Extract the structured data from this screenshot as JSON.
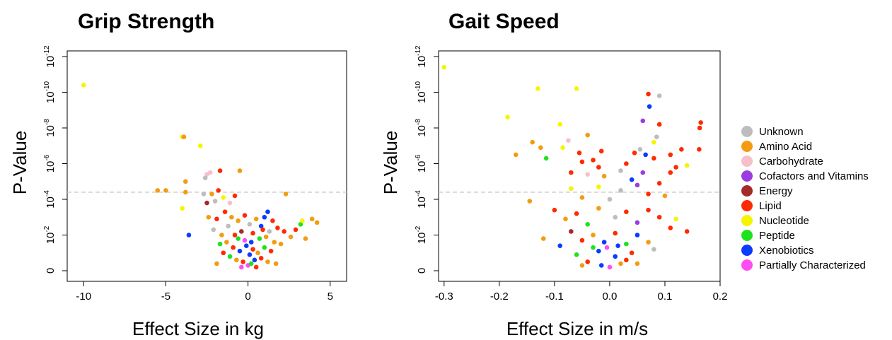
{
  "chart_data": [
    {
      "type": "scatter",
      "title": "Grip Strength",
      "xlabel": "Effect Size in kg",
      "ylabel": "P-Value",
      "xlim": [
        -11,
        6
      ],
      "ylim_neg_log10_p": [
        0,
        12
      ],
      "y_scale": "-log10(p)",
      "xticks": [
        -10,
        -5,
        0,
        5
      ],
      "xtick_labels": [
        "-10",
        "-5",
        "0",
        "5"
      ],
      "yticks_neg_log10_p": [
        0,
        2,
        4,
        6,
        8,
        10,
        12
      ],
      "ytick_labels": [
        {
          "base": "0",
          "exp": ""
        },
        {
          "base": "10",
          "exp": "-2"
        },
        {
          "base": "10",
          "exp": "-4"
        },
        {
          "base": "10",
          "exp": "-6"
        },
        {
          "base": "10",
          "exp": "-8"
        },
        {
          "base": "10",
          "exp": "-10"
        },
        {
          "base": "10",
          "exp": "-12"
        }
      ],
      "threshold_neg_log10_p": 4.4,
      "grid": false,
      "points": [
        {
          "x": -10.0,
          "y": 10.4,
          "group": "Nucleotide"
        },
        {
          "x": -4.0,
          "y": 7.5,
          "group": "Nucleotide"
        },
        {
          "x": -3.9,
          "y": 7.5,
          "group": "Amino Acid"
        },
        {
          "x": -2.9,
          "y": 7.0,
          "group": "Nucleotide"
        },
        {
          "x": -5.5,
          "y": 4.5,
          "group": "Amino Acid"
        },
        {
          "x": -5.0,
          "y": 4.5,
          "group": "Amino Acid"
        },
        {
          "x": -3.8,
          "y": 4.4,
          "group": "Amino Acid"
        },
        {
          "x": -3.8,
          "y": 5.0,
          "group": "Amino Acid"
        },
        {
          "x": -4.0,
          "y": 3.5,
          "group": "Nucleotide"
        },
        {
          "x": -3.6,
          "y": 2.0,
          "group": "Xenobiotics"
        },
        {
          "x": -2.5,
          "y": 5.4,
          "group": "Carbohydrate"
        },
        {
          "x": -2.3,
          "y": 5.5,
          "group": "Carbohydrate"
        },
        {
          "x": -2.6,
          "y": 5.2,
          "group": "Unknown"
        },
        {
          "x": -1.7,
          "y": 5.6,
          "group": "Lipid"
        },
        {
          "x": -0.5,
          "y": 5.6,
          "group": "Amino Acid"
        },
        {
          "x": -2.7,
          "y": 4.3,
          "group": "Unknown"
        },
        {
          "x": -2.5,
          "y": 3.8,
          "group": "Energy"
        },
        {
          "x": -2.2,
          "y": 4.3,
          "group": "Amino Acid"
        },
        {
          "x": -2.0,
          "y": 3.9,
          "group": "Unknown"
        },
        {
          "x": -1.8,
          "y": 4.5,
          "group": "Lipid"
        },
        {
          "x": -1.5,
          "y": 4.1,
          "group": "Nucleotide"
        },
        {
          "x": -1.1,
          "y": 3.8,
          "group": "Carbohydrate"
        },
        {
          "x": -0.8,
          "y": 4.2,
          "group": "Lipid"
        },
        {
          "x": 2.3,
          "y": 4.3,
          "group": "Amino Acid"
        },
        {
          "x": 1.2,
          "y": 3.3,
          "group": "Xenobiotics"
        },
        {
          "x": 1.0,
          "y": 3.0,
          "group": "Xenobiotics"
        },
        {
          "x": 0.8,
          "y": 2.5,
          "group": "Xenobiotics"
        },
        {
          "x": 1.5,
          "y": 2.8,
          "group": "Lipid"
        },
        {
          "x": 3.2,
          "y": 2.6,
          "group": "Peptide"
        },
        {
          "x": 3.3,
          "y": 2.8,
          "group": "Nucleotide"
        },
        {
          "x": 3.9,
          "y": 2.9,
          "group": "Amino Acid"
        },
        {
          "x": 4.2,
          "y": 2.7,
          "group": "Amino Acid"
        },
        {
          "x": 3.5,
          "y": 1.8,
          "group": "Amino Acid"
        },
        {
          "x": 2.2,
          "y": 2.2,
          "group": "Lipid"
        },
        {
          "x": 2.6,
          "y": 1.9,
          "group": "Amino Acid"
        },
        {
          "x": 2.9,
          "y": 2.3,
          "group": "Lipid"
        },
        {
          "x": -2.4,
          "y": 3.0,
          "group": "Amino Acid"
        },
        {
          "x": -2.1,
          "y": 2.3,
          "group": "Unknown"
        },
        {
          "x": -1.9,
          "y": 2.9,
          "group": "Lipid"
        },
        {
          "x": -1.6,
          "y": 2.0,
          "group": "Amino Acid"
        },
        {
          "x": -1.4,
          "y": 3.3,
          "group": "Lipid"
        },
        {
          "x": -1.2,
          "y": 2.5,
          "group": "Unknown"
        },
        {
          "x": -1.0,
          "y": 3.0,
          "group": "Amino Acid"
        },
        {
          "x": -0.8,
          "y": 2.0,
          "group": "Lipid"
        },
        {
          "x": -0.6,
          "y": 2.8,
          "group": "Amino Acid"
        },
        {
          "x": -0.4,
          "y": 2.2,
          "group": "Energy"
        },
        {
          "x": -0.2,
          "y": 3.1,
          "group": "Lipid"
        },
        {
          "x": 0.1,
          "y": 2.6,
          "group": "Unknown"
        },
        {
          "x": 0.3,
          "y": 2.1,
          "group": "Lipid"
        },
        {
          "x": 0.5,
          "y": 2.9,
          "group": "Amino Acid"
        },
        {
          "x": 0.7,
          "y": 1.8,
          "group": "Peptide"
        },
        {
          "x": 0.9,
          "y": 2.3,
          "group": "Lipid"
        },
        {
          "x": 1.1,
          "y": 1.9,
          "group": "Amino Acid"
        },
        {
          "x": 1.3,
          "y": 2.2,
          "group": "Unknown"
        },
        {
          "x": 1.6,
          "y": 1.6,
          "group": "Amino Acid"
        },
        {
          "x": 1.8,
          "y": 2.4,
          "group": "Lipid"
        },
        {
          "x": 2.0,
          "y": 1.5,
          "group": "Amino Acid"
        },
        {
          "x": -1.7,
          "y": 1.5,
          "group": "Peptide"
        },
        {
          "x": -1.5,
          "y": 1.0,
          "group": "Lipid"
        },
        {
          "x": -1.3,
          "y": 1.6,
          "group": "Amino Acid"
        },
        {
          "x": -1.1,
          "y": 0.8,
          "group": "Peptide"
        },
        {
          "x": -0.9,
          "y": 1.3,
          "group": "Lipid"
        },
        {
          "x": -0.7,
          "y": 0.6,
          "group": "Amino Acid"
        },
        {
          "x": -0.5,
          "y": 1.1,
          "group": "Xenobiotics"
        },
        {
          "x": -0.3,
          "y": 0.5,
          "group": "Lipid"
        },
        {
          "x": -0.1,
          "y": 1.4,
          "group": "Xenobiotics"
        },
        {
          "x": 0.0,
          "y": 0.3,
          "group": "Partially Characterized"
        },
        {
          "x": 0.1,
          "y": 0.9,
          "group": "Xenobiotics"
        },
        {
          "x": 0.2,
          "y": 0.4,
          "group": "Peptide"
        },
        {
          "x": 0.3,
          "y": 1.2,
          "group": "Lipid"
        },
        {
          "x": 0.4,
          "y": 0.6,
          "group": "Xenobiotics"
        },
        {
          "x": 0.6,
          "y": 1.0,
          "group": "Amino Acid"
        },
        {
          "x": 0.8,
          "y": 0.7,
          "group": "Lipid"
        },
        {
          "x": 1.0,
          "y": 1.3,
          "group": "Peptide"
        },
        {
          "x": 1.2,
          "y": 0.5,
          "group": "Amino Acid"
        },
        {
          "x": 1.4,
          "y": 1.1,
          "group": "Lipid"
        },
        {
          "x": -0.2,
          "y": 1.7,
          "group": "Partially Characterized"
        },
        {
          "x": -0.4,
          "y": 0.2,
          "group": "Partially Characterized"
        },
        {
          "x": 0.2,
          "y": 1.6,
          "group": "Xenobiotics"
        },
        {
          "x": -0.6,
          "y": 1.8,
          "group": "Peptide"
        },
        {
          "x": 0.5,
          "y": 0.2,
          "group": "Lipid"
        },
        {
          "x": -1.9,
          "y": 0.4,
          "group": "Amino Acid"
        },
        {
          "x": 1.7,
          "y": 0.4,
          "group": "Amino Acid"
        }
      ]
    },
    {
      "type": "scatter",
      "title": "Gait Speed",
      "xlabel": "Effect Size in m/s",
      "ylabel": "P-Value",
      "xlim": [
        -0.31,
        0.2
      ],
      "ylim_neg_log10_p": [
        0,
        12
      ],
      "y_scale": "-log10(p)",
      "xticks": [
        -0.3,
        -0.2,
        -0.1,
        0.0,
        0.1,
        0.2
      ],
      "xtick_labels": [
        "-0.3",
        "-0.2",
        "-0.1",
        "0.0",
        "0.1",
        "0.2"
      ],
      "yticks_neg_log10_p": [
        0,
        2,
        4,
        6,
        8,
        10,
        12
      ],
      "ytick_labels": [
        {
          "base": "0",
          "exp": ""
        },
        {
          "base": "10",
          "exp": "-2"
        },
        {
          "base": "10",
          "exp": "-4"
        },
        {
          "base": "10",
          "exp": "-6"
        },
        {
          "base": "10",
          "exp": "-8"
        },
        {
          "base": "10",
          "exp": "-10"
        },
        {
          "base": "10",
          "exp": "-12"
        }
      ],
      "threshold_neg_log10_p": 4.4,
      "grid": false,
      "points": [
        {
          "x": -0.3,
          "y": 11.4,
          "group": "Nucleotide"
        },
        {
          "x": -0.13,
          "y": 10.2,
          "group": "Nucleotide"
        },
        {
          "x": -0.06,
          "y": 10.2,
          "group": "Nucleotide"
        },
        {
          "x": -0.185,
          "y": 8.6,
          "group": "Nucleotide"
        },
        {
          "x": -0.09,
          "y": 8.2,
          "group": "Nucleotide"
        },
        {
          "x": -0.14,
          "y": 7.2,
          "group": "Amino Acid"
        },
        {
          "x": -0.125,
          "y": 6.9,
          "group": "Amino Acid"
        },
        {
          "x": -0.04,
          "y": 7.6,
          "group": "Amino Acid"
        },
        {
          "x": -0.075,
          "y": 7.3,
          "group": "Carbohydrate"
        },
        {
          "x": -0.17,
          "y": 6.5,
          "group": "Amino Acid"
        },
        {
          "x": -0.115,
          "y": 6.3,
          "group": "Peptide"
        },
        {
          "x": -0.085,
          "y": 6.9,
          "group": "Nucleotide"
        },
        {
          "x": -0.055,
          "y": 6.6,
          "group": "Lipid"
        },
        {
          "x": -0.05,
          "y": 6.1,
          "group": "Lipid"
        },
        {
          "x": -0.03,
          "y": 6.2,
          "group": "Lipid"
        },
        {
          "x": -0.015,
          "y": 6.7,
          "group": "Lipid"
        },
        {
          "x": -0.07,
          "y": 5.5,
          "group": "Lipid"
        },
        {
          "x": -0.04,
          "y": 5.4,
          "group": "Carbohydrate"
        },
        {
          "x": -0.02,
          "y": 5.8,
          "group": "Lipid"
        },
        {
          "x": -0.01,
          "y": 5.3,
          "group": "Amino Acid"
        },
        {
          "x": 0.02,
          "y": 5.6,
          "group": "Unknown"
        },
        {
          "x": 0.03,
          "y": 6.0,
          "group": "Lipid"
        },
        {
          "x": 0.04,
          "y": 5.1,
          "group": "Xenobiotics"
        },
        {
          "x": 0.045,
          "y": 6.6,
          "group": "Lipid"
        },
        {
          "x": 0.055,
          "y": 6.8,
          "group": "Unknown"
        },
        {
          "x": 0.06,
          "y": 5.5,
          "group": "Cofactors and Vitamins"
        },
        {
          "x": 0.065,
          "y": 6.5,
          "group": "Xenobiotics"
        },
        {
          "x": 0.07,
          "y": 9.9,
          "group": "Lipid"
        },
        {
          "x": 0.072,
          "y": 9.2,
          "group": "Xenobiotics"
        },
        {
          "x": 0.09,
          "y": 9.8,
          "group": "Unknown"
        },
        {
          "x": 0.06,
          "y": 8.4,
          "group": "Cofactors and Vitamins"
        },
        {
          "x": 0.09,
          "y": 8.2,
          "group": "Lipid"
        },
        {
          "x": 0.085,
          "y": 7.5,
          "group": "Unknown"
        },
        {
          "x": 0.08,
          "y": 7.2,
          "group": "Nucleotide"
        },
        {
          "x": 0.08,
          "y": 6.3,
          "group": "Lipid"
        },
        {
          "x": 0.11,
          "y": 6.5,
          "group": "Lipid"
        },
        {
          "x": 0.13,
          "y": 6.8,
          "group": "Lipid"
        },
        {
          "x": 0.165,
          "y": 8.3,
          "group": "Lipid"
        },
        {
          "x": 0.163,
          "y": 8.0,
          "group": "Lipid"
        },
        {
          "x": 0.162,
          "y": 6.8,
          "group": "Lipid"
        },
        {
          "x": 0.14,
          "y": 5.9,
          "group": "Nucleotide"
        },
        {
          "x": 0.11,
          "y": 5.5,
          "group": "Lipid"
        },
        {
          "x": 0.12,
          "y": 5.8,
          "group": "Lipid"
        },
        {
          "x": 0.09,
          "y": 4.9,
          "group": "Lipid"
        },
        {
          "x": 0.1,
          "y": 4.2,
          "group": "Amino Acid"
        },
        {
          "x": -0.145,
          "y": 3.9,
          "group": "Amino Acid"
        },
        {
          "x": -0.07,
          "y": 4.6,
          "group": "Nucleotide"
        },
        {
          "x": -0.05,
          "y": 4.1,
          "group": "Amino Acid"
        },
        {
          "x": -0.02,
          "y": 4.7,
          "group": "Nucleotide"
        },
        {
          "x": 0.0,
          "y": 4.0,
          "group": "Unknown"
        },
        {
          "x": 0.02,
          "y": 4.5,
          "group": "Unknown"
        },
        {
          "x": 0.05,
          "y": 4.8,
          "group": "Cofactors and Vitamins"
        },
        {
          "x": 0.07,
          "y": 4.3,
          "group": "Lipid"
        },
        {
          "x": -0.1,
          "y": 3.4,
          "group": "Lipid"
        },
        {
          "x": -0.08,
          "y": 2.9,
          "group": "Amino Acid"
        },
        {
          "x": -0.06,
          "y": 3.2,
          "group": "Lipid"
        },
        {
          "x": -0.04,
          "y": 2.6,
          "group": "Peptide"
        },
        {
          "x": -0.02,
          "y": 3.5,
          "group": "Amino Acid"
        },
        {
          "x": 0.01,
          "y": 3.0,
          "group": "Unknown"
        },
        {
          "x": 0.03,
          "y": 3.3,
          "group": "Lipid"
        },
        {
          "x": 0.05,
          "y": 2.7,
          "group": "Cofactors and Vitamins"
        },
        {
          "x": 0.07,
          "y": 3.4,
          "group": "Lipid"
        },
        {
          "x": 0.09,
          "y": 3.0,
          "group": "Lipid"
        },
        {
          "x": 0.11,
          "y": 2.4,
          "group": "Lipid"
        },
        {
          "x": 0.12,
          "y": 2.9,
          "group": "Nucleotide"
        },
        {
          "x": 0.14,
          "y": 2.2,
          "group": "Lipid"
        },
        {
          "x": -0.12,
          "y": 1.8,
          "group": "Amino Acid"
        },
        {
          "x": -0.09,
          "y": 1.4,
          "group": "Xenobiotics"
        },
        {
          "x": -0.07,
          "y": 2.2,
          "group": "Energy"
        },
        {
          "x": -0.05,
          "y": 1.7,
          "group": "Lipid"
        },
        {
          "x": -0.03,
          "y": 2.0,
          "group": "Amino Acid"
        },
        {
          "x": -0.01,
          "y": 1.6,
          "group": "Xenobiotics"
        },
        {
          "x": 0.01,
          "y": 2.1,
          "group": "Lipid"
        },
        {
          "x": 0.03,
          "y": 1.5,
          "group": "Peptide"
        },
        {
          "x": 0.05,
          "y": 2.0,
          "group": "Xenobiotics"
        },
        {
          "x": 0.07,
          "y": 1.6,
          "group": "Amino Acid"
        },
        {
          "x": 0.08,
          "y": 1.2,
          "group": "Unknown"
        },
        {
          "x": -0.06,
          "y": 0.9,
          "group": "Peptide"
        },
        {
          "x": -0.04,
          "y": 0.5,
          "group": "Lipid"
        },
        {
          "x": -0.02,
          "y": 1.1,
          "group": "Xenobiotics"
        },
        {
          "x": 0.0,
          "y": 0.2,
          "group": "Partially Characterized"
        },
        {
          "x": 0.01,
          "y": 0.8,
          "group": "Xenobiotics"
        },
        {
          "x": 0.02,
          "y": 0.4,
          "group": "Amino Acid"
        },
        {
          "x": 0.04,
          "y": 1.0,
          "group": "Lipid"
        },
        {
          "x": -0.015,
          "y": 0.3,
          "group": "Xenobiotics"
        },
        {
          "x": -0.005,
          "y": 1.3,
          "group": "Partially Characterized"
        },
        {
          "x": 0.015,
          "y": 1.4,
          "group": "Xenobiotics"
        },
        {
          "x": -0.03,
          "y": 1.3,
          "group": "Peptide"
        },
        {
          "x": 0.03,
          "y": 0.6,
          "group": "Lipid"
        },
        {
          "x": -0.05,
          "y": 0.3,
          "group": "Amino Acid"
        },
        {
          "x": 0.05,
          "y": 0.4,
          "group": "Amino Acid"
        }
      ]
    }
  ],
  "legend": {
    "placement": "right",
    "items": [
      {
        "label": "Unknown",
        "color": "#bdbdbd"
      },
      {
        "label": "Amino Acid",
        "color": "#f39c12"
      },
      {
        "label": "Carbohydrate",
        "color": "#f7bfca"
      },
      {
        "label": "Cofactors and Vitamins",
        "color": "#9b3ce0"
      },
      {
        "label": "Energy",
        "color": "#a52a2a"
      },
      {
        "label": "Lipid",
        "color": "#ff2a00"
      },
      {
        "label": "Nucleotide",
        "color": "#f5f500"
      },
      {
        "label": "Peptide",
        "color": "#1fe21f"
      },
      {
        "label": "Xenobiotics",
        "color": "#0a3cff"
      },
      {
        "label": "Partially Characterized",
        "color": "#ff4df3"
      }
    ]
  },
  "threshold_line_color": "#cccccc"
}
